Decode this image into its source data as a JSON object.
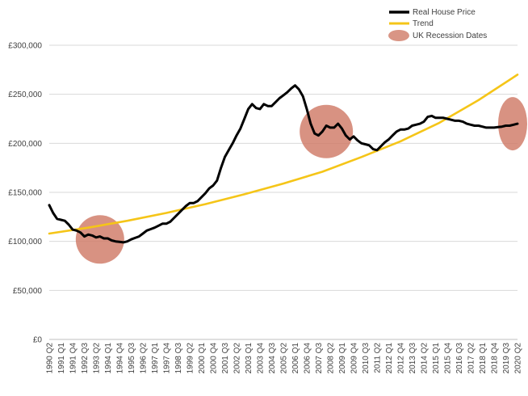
{
  "chart_data": {
    "type": "line",
    "title": "",
    "xlabel": "",
    "ylabel": "",
    "ylim": [
      0,
      300000
    ],
    "y_ticks": [
      "£0",
      "£50,000",
      "£100,000",
      "£150,000",
      "£200,000",
      "£250,000",
      "£300,000"
    ],
    "y_tick_values": [
      0,
      50000,
      100000,
      150000,
      200000,
      250000,
      300000
    ],
    "grid": "horizontal",
    "legend_position": "top-right",
    "x_labels": [
      "1990 Q2",
      "1991 Q1",
      "1991 Q4",
      "1992 Q3",
      "1993 Q2",
      "1994 Q1",
      "1994 Q4",
      "1995 Q3",
      "1996 Q2",
      "1997 Q1",
      "1997 Q4",
      "1998 Q3",
      "1999 Q2",
      "2000 Q1",
      "2000 Q4",
      "2001 Q3",
      "2002 Q2",
      "2003 Q1",
      "2003 Q4",
      "2004 Q3",
      "2005 Q2",
      "2006 Q1",
      "2006 Q4",
      "2007 Q3",
      "2008 Q2",
      "2009 Q1",
      "2009 Q4",
      "2010 Q3",
      "2011 Q2",
      "2012 Q1",
      "2012 Q4",
      "2013 Q3",
      "2014 Q2",
      "2015 Q1",
      "2015 Q4",
      "2016 Q3",
      "2017 Q2",
      "2018 Q1",
      "2018 Q4",
      "2019 Q3",
      "2020 Q2"
    ],
    "series": [
      {
        "name": "Real House Price",
        "color": "#000000",
        "x_quarter_index": [
          0,
          1,
          2,
          3,
          4,
          5,
          6,
          7,
          8,
          9,
          10,
          11,
          12,
          13,
          14,
          15,
          16,
          17,
          18,
          19,
          20,
          21,
          22,
          23,
          24,
          25,
          26,
          27,
          28,
          29,
          30,
          31,
          32,
          33,
          34,
          35,
          36,
          37,
          38,
          39,
          40,
          41,
          42,
          43,
          44,
          45,
          46,
          47,
          48,
          49,
          50,
          51,
          52,
          53,
          54,
          55,
          56,
          57,
          58,
          59,
          60,
          61,
          62,
          63,
          64,
          65,
          66,
          67,
          68,
          69,
          70,
          71,
          72,
          73,
          74,
          75,
          76,
          77,
          78,
          79,
          80,
          81,
          82,
          83,
          84,
          85,
          86,
          87,
          88,
          89,
          90,
          91,
          92,
          93,
          94,
          95,
          96,
          97,
          98,
          99,
          100,
          101,
          102,
          103,
          104,
          105,
          106,
          107,
          108,
          109,
          110,
          111,
          112,
          113,
          114,
          115,
          116,
          117,
          118,
          119,
          120
        ],
        "values": [
          137000,
          129000,
          123000,
          122000,
          121000,
          117000,
          112000,
          111000,
          109000,
          105000,
          107000,
          106000,
          104000,
          105000,
          103000,
          103000,
          101000,
          100000,
          99500,
          99000,
          100000,
          102000,
          103500,
          105000,
          108000,
          111000,
          112500,
          114000,
          116000,
          118000,
          118000,
          120000,
          124000,
          128000,
          132000,
          136000,
          139000,
          139000,
          141000,
          145000,
          149000,
          154000,
          157000,
          162000,
          175000,
          186000,
          193000,
          200000,
          208000,
          215000,
          225000,
          235000,
          240000,
          236000,
          235000,
          240000,
          238000,
          238000,
          242000,
          246000,
          249000,
          252000,
          256000,
          259000,
          255000,
          248000,
          235000,
          220000,
          210000,
          208000,
          212000,
          218000,
          216000,
          216000,
          220000,
          215000,
          208000,
          204000,
          207000,
          203000,
          200000,
          199000,
          198000,
          194000,
          193000,
          197000,
          201000,
          204000,
          208000,
          212000,
          214000,
          214000,
          215000,
          218000,
          219000,
          220000,
          222000,
          227000,
          228000,
          226000,
          226000,
          226000,
          225000,
          224000,
          223000,
          223000,
          222000,
          220000,
          219000,
          218000,
          218000,
          217000,
          216000,
          216000,
          216000,
          216500,
          217000,
          218000,
          218000,
          219000,
          220000
        ]
      },
      {
        "name": "Trend",
        "color": "#f5c518",
        "x_quarter_index": [
          0,
          10,
          20,
          30,
          40,
          50,
          60,
          70,
          80,
          90,
          100,
          110,
          120
        ],
        "values": [
          108000,
          114000,
          121000,
          129000,
          138000,
          148000,
          159000,
          171000,
          186000,
          202000,
          221000,
          244000,
          270000
        ]
      }
    ],
    "recession_dates": {
      "name": "UK Recession Dates",
      "color": "#d07a66",
      "periods": [
        "1990 Q3 - 1991 Q3",
        "2008 Q2 - 2009 Q2",
        "2020 Q1 - 2020 Q2"
      ]
    }
  }
}
